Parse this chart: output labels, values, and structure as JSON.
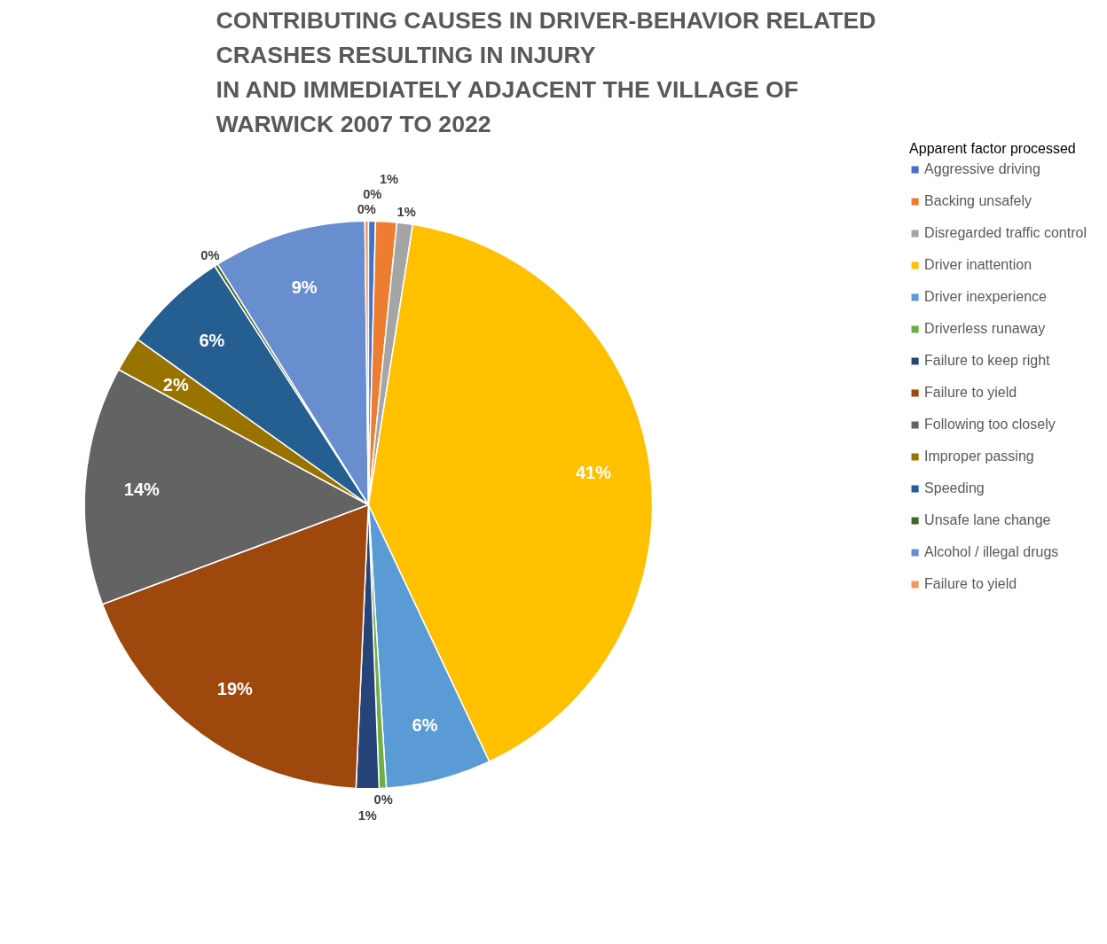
{
  "chart_data": {
    "type": "pie",
    "title": "CONTRIBUTING CAUSES IN DRIVER-BEHAVIOR RELATED\nCRASHES RESULTING IN INJURY\nIN AND IMMEDIATELY ADJACENT THE VILLAGE OF\nWARWICK 2007 TO 2022",
    "legend_title": "Apparent factor processed",
    "categories": [
      "Aggressive driving",
      "Backing unsafely",
      "Disregarded traffic control",
      "Driver inattention",
      "Driver inexperience",
      "Driverless runaway",
      "Failure to keep right",
      "Failure to yield",
      "Following too closely",
      "Improper passing",
      "Speeding",
      "Unsafe lane change",
      "Alcohol / illegal drugs",
      "Failure to yield"
    ],
    "values": [
      0.4,
      1.2,
      0.9,
      40.5,
      6.0,
      0.4,
      1.3,
      18.6,
      13.6,
      2.0,
      6.0,
      0.2,
      8.7,
      0.2
    ],
    "value_labels": [
      "0%",
      "1%",
      "1%",
      "41%",
      "6%",
      "0%",
      "1%",
      "19%",
      "14%",
      "2%",
      "6%",
      "0%",
      "9%",
      "0%"
    ],
    "colors": [
      "#4472c4",
      "#ed7d31",
      "#a5a5a5",
      "#ffc000",
      "#5b9bd5",
      "#70ad47",
      "#264478",
      "#9e480e",
      "#636363",
      "#997300",
      "#255e91",
      "#43682b",
      "#698ed0",
      "#f1975a"
    ],
    "legend": "right"
  }
}
